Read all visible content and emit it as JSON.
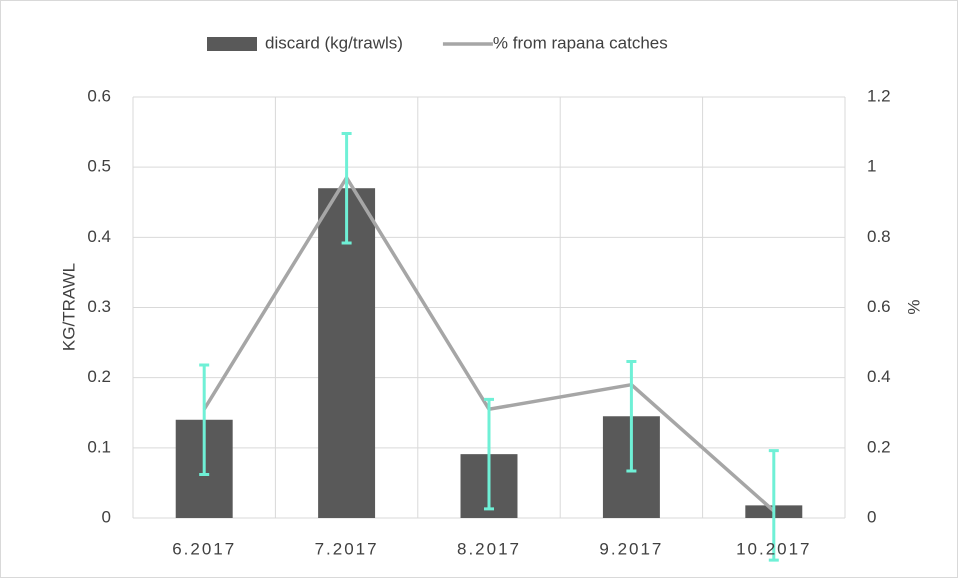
{
  "chart_data": {
    "type": "bar-line",
    "categories": [
      "6.2017",
      "7.2017",
      "8.2017",
      "9.2017",
      "10.2017"
    ],
    "series": [
      {
        "name": "discard (kg/trawls)",
        "type": "bar",
        "color": "#595959",
        "values": [
          0.14,
          0.47,
          0.091,
          0.145,
          0.018
        ],
        "errors": [
          0.078,
          0.078,
          0.078,
          0.078,
          0.078
        ],
        "error_color": "#6ff0d6"
      },
      {
        "name": "% from rapana catches",
        "type": "line",
        "axis": "y2",
        "color": "#a6a6a6",
        "values": [
          0.31,
          0.97,
          0.31,
          0.38,
          0.02
        ]
      }
    ],
    "y_label": "KG/TRAWL",
    "y2_label": "%",
    "ylim": [
      0,
      0.6
    ],
    "yticks": [
      0,
      0.1,
      0.2,
      0.3,
      0.4,
      0.5,
      0.6
    ],
    "y2lim": [
      0,
      1.2
    ],
    "y2ticks": [
      0,
      0.2,
      0.4,
      0.6,
      0.8,
      1,
      1.2
    ],
    "grid": true,
    "legend": "top"
  }
}
